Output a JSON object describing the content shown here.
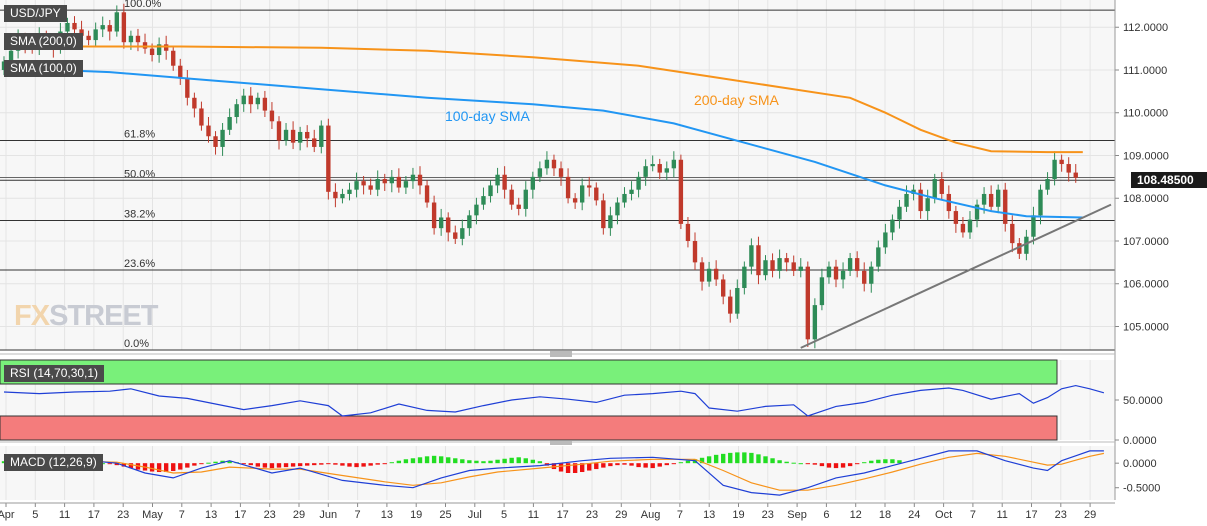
{
  "chart_data": {
    "type": "candlestick",
    "symbol": "USD/JPY",
    "last_price": "108.48500",
    "price_axis": {
      "ticks": [
        "112.0000",
        "111.0000",
        "110.0000",
        "109.0000",
        "108.0000",
        "107.0000",
        "106.0000",
        "105.0000"
      ],
      "ylim": [
        104.45,
        112.45
      ]
    },
    "x_axis": {
      "ticks": [
        "Apr",
        "5",
        "11",
        "17",
        "23",
        "May",
        "7",
        "13",
        "17",
        "23",
        "29",
        "Jun",
        "7",
        "13",
        "19",
        "25",
        "Jul",
        "5",
        "11",
        "17",
        "23",
        "29",
        "Aug",
        "7",
        "13",
        "19",
        "23",
        "Sep",
        "6",
        "12",
        "18",
        "24",
        "Oct",
        "7",
        "11",
        "17",
        "23",
        "29"
      ]
    },
    "fibonacci": {
      "levels": [
        {
          "label": "100.0%",
          "price": 112.4
        },
        {
          "label": "61.8%",
          "price": 109.35
        },
        {
          "label": "50.0%",
          "price": 108.42
        },
        {
          "label": "38.2%",
          "price": 107.48
        },
        {
          "label": "23.6%",
          "price": 106.32
        },
        {
          "label": "0.0%",
          "price": 104.45
        }
      ]
    },
    "annotations": {
      "sma200": "200-day SMA",
      "sma100": "100-day SMA"
    },
    "legend": {
      "pair": "USD/JPY",
      "sma200": "SMA (200,0)",
      "sma100": "SMA (100,0)"
    },
    "sma200_points": [
      [
        0,
        111.55
      ],
      [
        25,
        111.55
      ],
      [
        45,
        111.52
      ],
      [
        60,
        111.45
      ],
      [
        75,
        111.3
      ],
      [
        90,
        111.1
      ],
      [
        100,
        110.85
      ],
      [
        110,
        110.6
      ],
      [
        120,
        110.35
      ],
      [
        125,
        110.0
      ],
      [
        130,
        109.6
      ],
      [
        135,
        109.3
      ],
      [
        140,
        109.1
      ],
      [
        148,
        109.08
      ],
      [
        153,
        109.08
      ]
    ],
    "sma100_points": [
      [
        0,
        111.05
      ],
      [
        15,
        110.95
      ],
      [
        30,
        110.75
      ],
      [
        45,
        110.55
      ],
      [
        60,
        110.35
      ],
      [
        75,
        110.2
      ],
      [
        85,
        110.05
      ],
      [
        95,
        109.75
      ],
      [
        105,
        109.3
      ],
      [
        115,
        108.85
      ],
      [
        125,
        108.3
      ],
      [
        132,
        108.0
      ],
      [
        140,
        107.7
      ],
      [
        145,
        107.58
      ],
      [
        153,
        107.55
      ]
    ],
    "trendline": {
      "start": [
        113,
        104.5
      ],
      "end": [
        157,
        107.85
      ]
    },
    "candles": [
      [
        111.0,
        111.2
      ],
      [
        111.2,
        111.45
      ],
      [
        111.45,
        111.75
      ],
      [
        111.75,
        111.6
      ],
      [
        111.6,
        111.5
      ],
      [
        111.5,
        111.8
      ],
      [
        111.8,
        111.7
      ],
      [
        111.7,
        111.5
      ],
      [
        111.5,
        111.9
      ],
      [
        111.9,
        112.1
      ],
      [
        112.1,
        111.95
      ],
      [
        111.95,
        111.8
      ],
      [
        111.8,
        111.7
      ],
      [
        111.7,
        111.95
      ],
      [
        111.95,
        112.05
      ],
      [
        112.05,
        111.9
      ],
      [
        111.9,
        112.35
      ],
      [
        112.35,
        111.65
      ],
      [
        111.65,
        111.8
      ],
      [
        111.8,
        111.65
      ],
      [
        111.65,
        111.5
      ],
      [
        111.5,
        111.35
      ],
      [
        111.35,
        111.6
      ],
      [
        111.6,
        111.45
      ],
      [
        111.45,
        111.1
      ],
      [
        111.1,
        110.8
      ],
      [
        110.8,
        110.35
      ],
      [
        110.35,
        110.1
      ],
      [
        110.1,
        109.7
      ],
      [
        109.7,
        109.45
      ],
      [
        109.45,
        109.2
      ],
      [
        109.2,
        109.6
      ],
      [
        109.6,
        109.9
      ],
      [
        109.9,
        110.2
      ],
      [
        110.2,
        110.4
      ],
      [
        110.4,
        110.2
      ],
      [
        110.2,
        110.35
      ],
      [
        110.35,
        110.05
      ],
      [
        110.05,
        109.8
      ],
      [
        109.8,
        109.35
      ],
      [
        109.35,
        109.6
      ],
      [
        109.6,
        109.3
      ],
      [
        109.3,
        109.55
      ],
      [
        109.55,
        109.4
      ],
      [
        109.4,
        109.2
      ],
      [
        109.2,
        109.7
      ],
      [
        109.7,
        108.15
      ],
      [
        108.15,
        108.0
      ],
      [
        108.0,
        108.1
      ],
      [
        108.1,
        108.2
      ],
      [
        108.2,
        108.4
      ],
      [
        108.4,
        108.3
      ],
      [
        108.3,
        108.2
      ],
      [
        108.2,
        108.45
      ],
      [
        108.45,
        108.35
      ],
      [
        108.35,
        108.5
      ],
      [
        108.5,
        108.25
      ],
      [
        108.25,
        108.4
      ],
      [
        108.4,
        108.55
      ],
      [
        108.55,
        108.3
      ],
      [
        108.3,
        107.9
      ],
      [
        107.9,
        107.3
      ],
      [
        107.3,
        107.55
      ],
      [
        107.55,
        107.2
      ],
      [
        107.2,
        107.05
      ],
      [
        107.05,
        107.3
      ],
      [
        107.3,
        107.6
      ],
      [
        107.6,
        107.85
      ],
      [
        107.85,
        108.05
      ],
      [
        108.05,
        108.3
      ],
      [
        108.3,
        108.55
      ],
      [
        108.55,
        108.2
      ],
      [
        108.2,
        107.85
      ],
      [
        107.85,
        107.75
      ],
      [
        107.75,
        108.2
      ],
      [
        108.2,
        108.5
      ],
      [
        108.5,
        108.7
      ],
      [
        108.7,
        108.9
      ],
      [
        108.9,
        108.7
      ],
      [
        108.7,
        108.5
      ],
      [
        108.5,
        108.0
      ],
      [
        108.0,
        107.9
      ],
      [
        107.9,
        108.3
      ],
      [
        108.3,
        108.25
      ],
      [
        108.25,
        107.95
      ],
      [
        107.95,
        107.3
      ],
      [
        107.3,
        107.6
      ],
      [
        107.6,
        107.9
      ],
      [
        107.9,
        108.1
      ],
      [
        108.1,
        108.2
      ],
      [
        108.2,
        108.5
      ],
      [
        108.5,
        108.75
      ],
      [
        108.75,
        108.8
      ],
      [
        108.8,
        108.6
      ],
      [
        108.6,
        108.7
      ],
      [
        108.7,
        108.9
      ],
      [
        108.9,
        107.4
      ],
      [
        107.4,
        107.0
      ],
      [
        107.0,
        106.5
      ],
      [
        106.5,
        106.05
      ],
      [
        106.05,
        106.35
      ],
      [
        106.35,
        106.1
      ],
      [
        106.1,
        105.7
      ],
      [
        105.7,
        105.3
      ],
      [
        105.3,
        105.9
      ],
      [
        105.9,
        106.4
      ],
      [
        106.4,
        106.9
      ],
      [
        106.9,
        106.2
      ],
      [
        106.2,
        106.55
      ],
      [
        106.55,
        106.3
      ],
      [
        106.3,
        106.6
      ],
      [
        106.6,
        106.5
      ],
      [
        106.5,
        106.3
      ],
      [
        106.3,
        106.4
      ],
      [
        106.4,
        104.7
      ],
      [
        104.7,
        105.5
      ],
      [
        105.5,
        106.15
      ],
      [
        106.15,
        106.4
      ],
      [
        106.4,
        106.1
      ],
      [
        106.1,
        106.3
      ],
      [
        106.3,
        106.6
      ],
      [
        106.6,
        106.3
      ],
      [
        106.3,
        106.0
      ],
      [
        106.0,
        106.4
      ],
      [
        106.4,
        106.85
      ],
      [
        106.85,
        107.2
      ],
      [
        107.2,
        107.5
      ],
      [
        107.5,
        107.8
      ],
      [
        107.8,
        108.1
      ],
      [
        108.1,
        108.2
      ],
      [
        108.2,
        107.7
      ],
      [
        107.7,
        108.0
      ],
      [
        108.0,
        108.45
      ],
      [
        108.45,
        108.1
      ],
      [
        108.1,
        107.7
      ],
      [
        107.7,
        107.4
      ],
      [
        107.4,
        107.2
      ],
      [
        107.2,
        107.5
      ],
      [
        107.5,
        107.85
      ],
      [
        107.85,
        108.1
      ],
      [
        108.1,
        107.8
      ],
      [
        107.8,
        108.2
      ],
      [
        108.2,
        107.4
      ],
      [
        107.4,
        106.95
      ],
      [
        106.95,
        106.7
      ],
      [
        106.7,
        107.1
      ],
      [
        107.1,
        107.6
      ],
      [
        107.6,
        108.2
      ],
      [
        108.2,
        108.45
      ],
      [
        108.45,
        108.9
      ],
      [
        108.9,
        108.8
      ],
      [
        108.8,
        108.6
      ],
      [
        108.6,
        108.48
      ]
    ],
    "rsi": {
      "label": "RSI (14,70,30,1)",
      "overbought": 70,
      "oversold": 30,
      "ticks": [
        "50.0000",
        "0.0000"
      ],
      "points": [
        [
          0,
          60
        ],
        [
          5,
          58
        ],
        [
          10,
          60
        ],
        [
          15,
          61
        ],
        [
          18,
          64
        ],
        [
          22,
          55
        ],
        [
          26,
          52
        ],
        [
          30,
          45
        ],
        [
          34,
          38
        ],
        [
          38,
          43
        ],
        [
          42,
          49
        ],
        [
          46,
          43
        ],
        [
          48,
          30
        ],
        [
          52,
          34
        ],
        [
          56,
          45
        ],
        [
          60,
          37
        ],
        [
          64,
          35
        ],
        [
          68,
          43
        ],
        [
          72,
          50
        ],
        [
          76,
          54
        ],
        [
          80,
          51
        ],
        [
          84,
          47
        ],
        [
          88,
          56
        ],
        [
          92,
          58
        ],
        [
          96,
          61
        ],
        [
          98,
          58
        ],
        [
          100,
          40
        ],
        [
          104,
          36
        ],
        [
          108,
          42
        ],
        [
          112,
          44
        ],
        [
          114,
          30
        ],
        [
          118,
          42
        ],
        [
          122,
          47
        ],
        [
          126,
          56
        ],
        [
          130,
          62
        ],
        [
          134,
          65
        ],
        [
          136,
          62
        ],
        [
          140,
          51
        ],
        [
          144,
          58
        ],
        [
          146,
          46
        ],
        [
          148,
          53
        ],
        [
          150,
          64
        ],
        [
          152,
          68
        ],
        [
          154,
          64
        ],
        [
          156,
          59
        ]
      ]
    },
    "macd": {
      "label": "MACD (12,26,9)",
      "ticks": [
        "0.0000",
        "-0.5000"
      ],
      "hist": [
        0.04,
        0.06,
        0.07,
        0.06,
        0.05,
        0.07,
        0.07,
        0.06,
        0.06,
        0.08,
        0.07,
        0.05,
        0.03,
        0.02,
        0.0,
        -0.02,
        -0.04,
        -0.07,
        -0.1,
        -0.13,
        -0.15,
        -0.17,
        -0.18,
        -0.18,
        -0.16,
        -0.13,
        -0.09,
        -0.05,
        -0.02,
        0.01,
        0.03,
        0.05,
        0.04,
        0.02,
        -0.01,
        -0.04,
        -0.07,
        -0.09,
        -0.1,
        -0.09,
        -0.08,
        -0.07,
        -0.06,
        -0.05,
        -0.04,
        -0.03,
        -0.02,
        -0.03,
        -0.05,
        -0.07,
        -0.08,
        -0.07,
        -0.05,
        -0.03,
        -0.01,
        0.02,
        0.05,
        0.08,
        0.1,
        0.12,
        0.14,
        0.15,
        0.14,
        0.12,
        0.1,
        0.08,
        0.06,
        0.05,
        0.04,
        0.05,
        0.07,
        0.09,
        0.11,
        0.12,
        0.1,
        0.07,
        0.04,
        -0.05,
        -0.12,
        -0.17,
        -0.2,
        -0.2,
        -0.18,
        -0.15,
        -0.12,
        -0.09,
        -0.06,
        -0.04,
        -0.03,
        -0.05,
        -0.08,
        -0.09,
        -0.1,
        -0.07,
        -0.04,
        -0.01,
        0.02,
        0.05,
        0.08,
        0.11,
        0.14,
        0.17,
        0.19,
        0.21,
        0.22,
        0.22,
        0.21,
        0.18,
        0.14,
        0.1,
        0.06,
        0.03,
        0.01,
        0.0,
        -0.01,
        -0.03,
        -0.06,
        -0.09,
        -0.1,
        -0.09,
        -0.06,
        -0.02,
        0.02,
        0.05,
        0.07,
        0.08,
        0.08,
        0.06
      ],
      "macd_points": [
        [
          0,
          0.05
        ],
        [
          10,
          0.08
        ],
        [
          16,
          0.0
        ],
        [
          20,
          -0.2
        ],
        [
          24,
          -0.3
        ],
        [
          28,
          -0.1
        ],
        [
          32,
          0.05
        ],
        [
          38,
          -0.2
        ],
        [
          42,
          -0.1
        ],
        [
          48,
          -0.35
        ],
        [
          54,
          -0.45
        ],
        [
          58,
          -0.5
        ],
        [
          62,
          -0.3
        ],
        [
          66,
          -0.15
        ],
        [
          70,
          -0.1
        ],
        [
          76,
          -0.05
        ],
        [
          82,
          0.05
        ],
        [
          86,
          0.1
        ],
        [
          92,
          0.12
        ],
        [
          98,
          0.05
        ],
        [
          102,
          -0.45
        ],
        [
          106,
          -0.6
        ],
        [
          110,
          -0.65
        ],
        [
          114,
          -0.5
        ],
        [
          118,
          -0.3
        ],
        [
          122,
          -0.2
        ],
        [
          126,
          -0.05
        ],
        [
          130,
          0.1
        ],
        [
          134,
          0.25
        ],
        [
          138,
          0.25
        ],
        [
          142,
          0.05
        ],
        [
          146,
          -0.1
        ],
        [
          148,
          -0.15
        ],
        [
          150,
          0.05
        ],
        [
          152,
          0.15
        ],
        [
          154,
          0.25
        ],
        [
          156,
          0.25
        ]
      ],
      "signal_points": [
        [
          0,
          0.0
        ],
        [
          10,
          0.04
        ],
        [
          16,
          0.02
        ],
        [
          20,
          -0.08
        ],
        [
          24,
          -0.2
        ],
        [
          28,
          -0.18
        ],
        [
          32,
          -0.08
        ],
        [
          38,
          -0.12
        ],
        [
          42,
          -0.12
        ],
        [
          48,
          -0.25
        ],
        [
          54,
          -0.38
        ],
        [
          58,
          -0.45
        ],
        [
          62,
          -0.4
        ],
        [
          66,
          -0.28
        ],
        [
          70,
          -0.18
        ],
        [
          76,
          -0.1
        ],
        [
          82,
          -0.02
        ],
        [
          86,
          0.04
        ],
        [
          92,
          0.08
        ],
        [
          98,
          0.08
        ],
        [
          102,
          -0.15
        ],
        [
          106,
          -0.4
        ],
        [
          110,
          -0.55
        ],
        [
          114,
          -0.55
        ],
        [
          118,
          -0.45
        ],
        [
          122,
          -0.32
        ],
        [
          126,
          -0.18
        ],
        [
          130,
          -0.02
        ],
        [
          134,
          0.12
        ],
        [
          138,
          0.2
        ],
        [
          142,
          0.14
        ],
        [
          146,
          0.02
        ],
        [
          148,
          -0.04
        ],
        [
          150,
          -0.02
        ],
        [
          152,
          0.06
        ],
        [
          154,
          0.14
        ],
        [
          156,
          0.2
        ]
      ]
    }
  },
  "branding": {
    "logo_a": "FX",
    "logo_b": "STREET"
  }
}
